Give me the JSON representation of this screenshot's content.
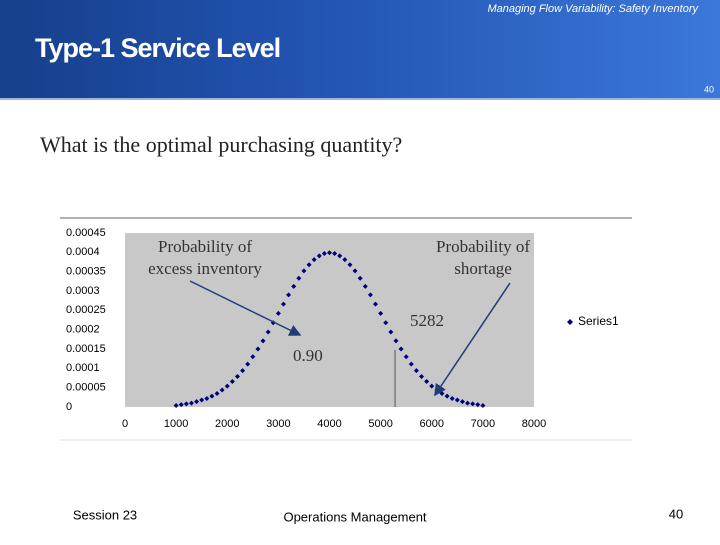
{
  "header": {
    "subtitle": "Managing Flow Variability:  Safety Inventory",
    "title": "Type-1 Service Level",
    "page": "40"
  },
  "question": "What is the optimal purchasing quantity?",
  "chart_data": {
    "type": "scatter",
    "x": [
      1000,
      1100,
      1200,
      1300,
      1400,
      1500,
      1600,
      1700,
      1800,
      1900,
      2000,
      2100,
      2200,
      2300,
      2400,
      2500,
      2600,
      2700,
      2800,
      2900,
      3000,
      3100,
      3200,
      3300,
      3400,
      3500,
      3600,
      3700,
      3800,
      3900,
      4000,
      4100,
      4200,
      4300,
      4400,
      4500,
      4600,
      4700,
      4800,
      4900,
      5000,
      5100,
      5200,
      5300,
      5400,
      5500,
      5600,
      5700,
      5800,
      5900,
      6000,
      6100,
      6200,
      6300,
      6400,
      6500,
      6600,
      6700,
      6800,
      6900,
      7000
    ],
    "series": [
      {
        "name": "Series1",
        "color": "#000080",
        "values": [
          4e-06,
          6e-06,
          8e-06,
          1e-05,
          1.4e-05,
          1.8e-05,
          2.2e-05,
          2.8e-05,
          3.5e-05,
          4.4e-05,
          5.4e-05,
          6.6e-05,
          7.9e-05,
          9.4e-05,
          0.000111,
          0.00013,
          0.00015,
          0.000171,
          0.000194,
          0.000218,
          0.000242,
          0.000266,
          0.00029,
          0.000312,
          0.000333,
          0.000352,
          0.000368,
          0.000381,
          0.000391,
          0.000397,
          0.000399,
          0.000397,
          0.000391,
          0.000381,
          0.000368,
          0.000352,
          0.000333,
          0.000312,
          0.00029,
          0.000266,
          0.000242,
          0.000218,
          0.000194,
          0.000171,
          0.00015,
          0.00013,
          0.000111,
          9.4e-05,
          7.9e-05,
          6.6e-05,
          5.4e-05,
          4.4e-05,
          3.5e-05,
          2.8e-05,
          2.2e-05,
          1.8e-05,
          1.4e-05,
          1e-05,
          8e-06,
          6e-06,
          4e-06
        ]
      }
    ],
    "xlim": [
      0,
      8000
    ],
    "xticks": [
      0,
      1000,
      2000,
      3000,
      4000,
      5000,
      6000,
      7000,
      8000
    ],
    "ylim": [
      0,
      0.00045
    ],
    "yticks": [
      0,
      5e-05,
      0.0001,
      0.00015,
      0.0002,
      0.00025,
      0.0003,
      0.00035,
      0.0004,
      0.00045
    ],
    "legend": "right",
    "annotations": {
      "excess": [
        "Probability of",
        "excess inventory"
      ],
      "shortage": [
        "Probability of",
        "shortage"
      ],
      "cutoff": 5282,
      "service_level": "0.90"
    }
  },
  "footer": {
    "session": "Session 23",
    "course": "Operations Management",
    "page": "40"
  }
}
